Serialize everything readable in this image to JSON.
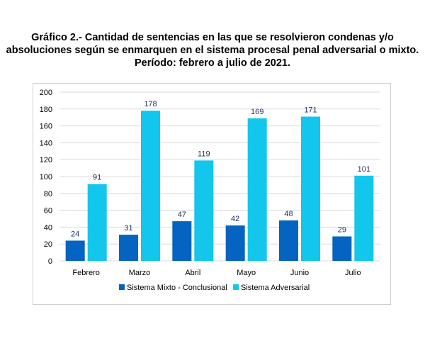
{
  "title_lines": [
    "Gráfico 2.- Cantidad de sentencias en las que se resolvieron condenas y/o",
    "absoluciones según se enmarquen en el sistema procesal penal adversarial o mixto.",
    "Período: febrero a julio de 2021."
  ],
  "colors": {
    "mixto": "#0563c1",
    "adversarial": "#12c6ec",
    "grid": "#d9d9d9",
    "label": "#1f2d5c"
  },
  "chart_data": {
    "type": "bar",
    "categories": [
      "Febrero",
      "Marzo",
      "Abril",
      "Mayo",
      "Junio",
      "Julio"
    ],
    "series": [
      {
        "name": "Sistema Mixto - Conclusional",
        "values": [
          24,
          31,
          47,
          42,
          48,
          29
        ]
      },
      {
        "name": "Sistema Adversarial",
        "values": [
          91,
          178,
          119,
          169,
          171,
          101
        ]
      }
    ],
    "ylim": [
      0,
      200
    ],
    "yticks": [
      0,
      20,
      40,
      60,
      80,
      100,
      120,
      140,
      160,
      180,
      200
    ],
    "grid": true,
    "legend_position": "bottom",
    "data_labels": true
  }
}
